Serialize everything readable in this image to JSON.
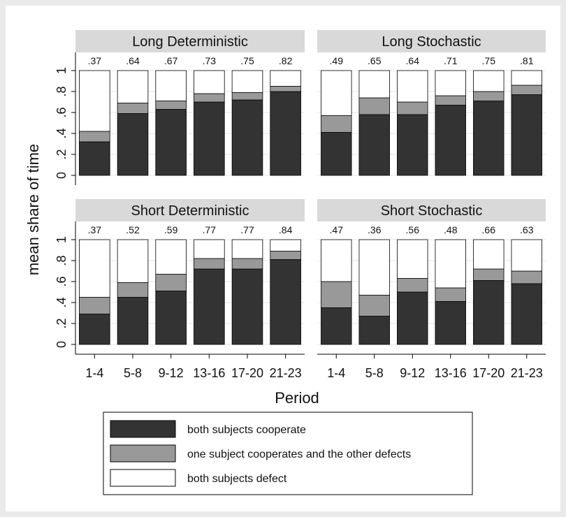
{
  "chart_data": {
    "type": "bar",
    "stacked": true,
    "xlabel": "Period",
    "ylabel": "mean share of time",
    "ylim": [
      0,
      1
    ],
    "yticks": [
      "0",
      ".2",
      ".4",
      ".6",
      ".8",
      "1"
    ],
    "categories": [
      "1-4",
      "5-8",
      "9-12",
      "13-16",
      "17-20",
      "21-23"
    ],
    "legend": {
      "placement": "bottom",
      "entries": [
        {
          "label": "both subjects cooperate",
          "color": "#333333"
        },
        {
          "label": "one subject cooperates and the other defects",
          "color": "#999999"
        },
        {
          "label": "both subjects defect",
          "color": "#ffffff"
        }
      ]
    },
    "panels": [
      {
        "title": "Long Deterministic",
        "top_labels": [
          ".37",
          ".64",
          ".67",
          ".73",
          ".75",
          ".82"
        ],
        "series": [
          {
            "name": "both subjects cooperate",
            "values": [
              0.32,
              0.59,
              0.63,
              0.7,
              0.72,
              0.8
            ]
          },
          {
            "name": "one subject cooperates and the other defects",
            "values": [
              0.1,
              0.1,
              0.08,
              0.08,
              0.07,
              0.05
            ]
          },
          {
            "name": "both subjects defect",
            "values": [
              0.58,
              0.31,
              0.29,
              0.22,
              0.21,
              0.15
            ]
          }
        ]
      },
      {
        "title": "Long Stochastic",
        "top_labels": [
          ".49",
          ".65",
          ".64",
          ".71",
          ".75",
          ".81"
        ],
        "series": [
          {
            "name": "both subjects cooperate",
            "values": [
              0.41,
              0.58,
              0.58,
              0.67,
              0.71,
              0.77
            ]
          },
          {
            "name": "one subject cooperates and the other defects",
            "values": [
              0.16,
              0.16,
              0.12,
              0.09,
              0.09,
              0.09
            ]
          },
          {
            "name": "both subjects defect",
            "values": [
              0.43,
              0.26,
              0.3,
              0.24,
              0.2,
              0.14
            ]
          }
        ]
      },
      {
        "title": "Short Deterministic",
        "top_labels": [
          ".37",
          ".52",
          ".59",
          ".77",
          ".77",
          ".84"
        ],
        "series": [
          {
            "name": "both subjects cooperate",
            "values": [
              0.29,
              0.45,
              0.51,
              0.72,
              0.72,
              0.81
            ]
          },
          {
            "name": "one subject cooperates and the other defects",
            "values": [
              0.16,
              0.14,
              0.16,
              0.1,
              0.1,
              0.08
            ]
          },
          {
            "name": "both subjects defect",
            "values": [
              0.55,
              0.41,
              0.33,
              0.18,
              0.18,
              0.11
            ]
          }
        ]
      },
      {
        "title": "Short Stochastic",
        "top_labels": [
          ".47",
          ".36",
          ".56",
          ".48",
          ".66",
          ".63"
        ],
        "series": [
          {
            "name": "both subjects cooperate",
            "values": [
              0.35,
              0.27,
              0.5,
              0.41,
              0.61,
              0.58
            ]
          },
          {
            "name": "one subject cooperates and the other defects",
            "values": [
              0.25,
              0.2,
              0.13,
              0.13,
              0.11,
              0.12
            ]
          },
          {
            "name": "both subjects defect",
            "values": [
              0.4,
              0.53,
              0.37,
              0.46,
              0.28,
              0.3
            ]
          }
        ]
      }
    ]
  }
}
